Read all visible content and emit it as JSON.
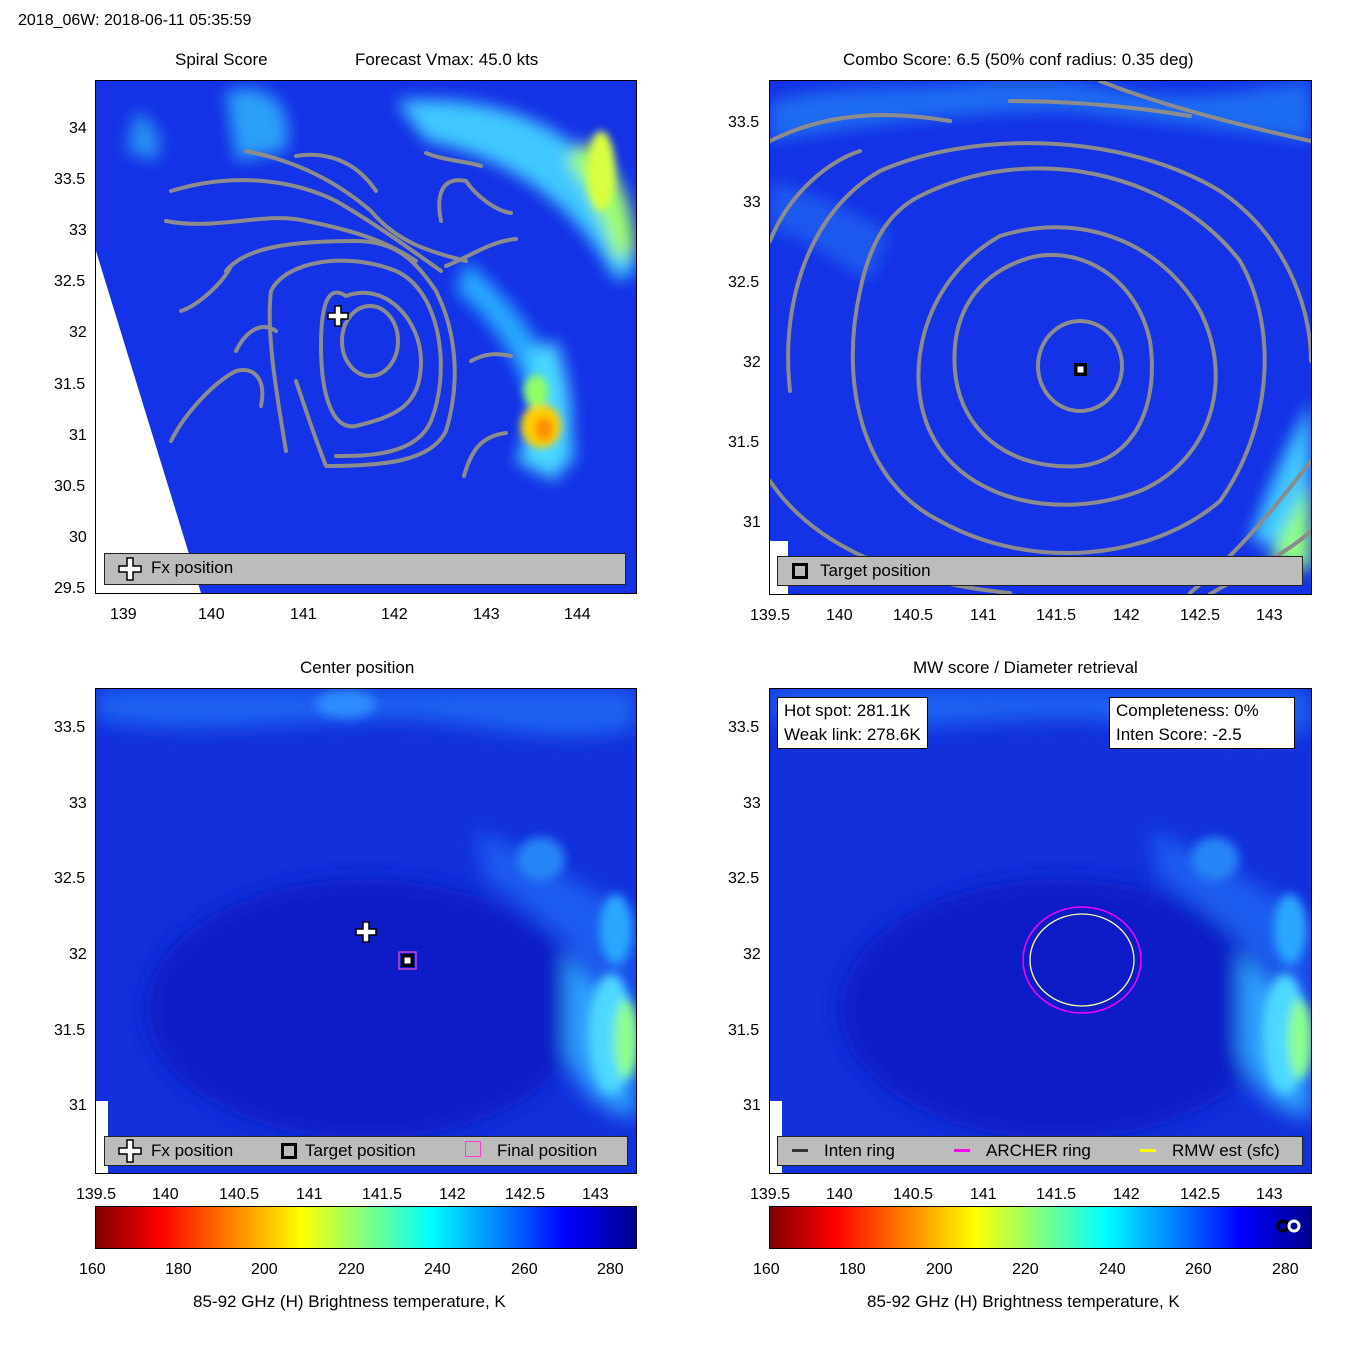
{
  "header": "2018_06W: 2018-06-11 05:35:59",
  "panels": {
    "spiral": {
      "title": "Spiral Score",
      "subtitle": "Forecast Vmax: 45.0 kts",
      "legend": [
        "Fx position"
      ],
      "xticks": [
        "139",
        "140",
        "141",
        "142",
        "143",
        "144"
      ],
      "yticks": [
        "34",
        "33.5",
        "33",
        "32.5",
        "32",
        "31.5",
        "31",
        "30.5",
        "30",
        "29.5"
      ]
    },
    "combo": {
      "title": "Combo Score: 6.5  (50% conf radius: 0.35 deg)",
      "legend": [
        "Target position"
      ],
      "xticks": [
        "139.5",
        "140",
        "140.5",
        "141",
        "141.5",
        "142",
        "142.5",
        "143"
      ],
      "yticks": [
        "33.5",
        "33",
        "32.5",
        "32",
        "31.5",
        "31"
      ]
    },
    "center": {
      "title": "Center position",
      "legend": [
        "Fx position",
        "Target position",
        "Final position"
      ],
      "xticks": [
        "139.5",
        "140",
        "140.5",
        "141",
        "141.5",
        "142",
        "142.5",
        "143"
      ],
      "yticks": [
        "33.5",
        "33",
        "32.5",
        "32",
        "31.5",
        "31"
      ]
    },
    "mw": {
      "title": "MW score / Diameter retrieval",
      "hot_spot": "Hot spot: 281.1K",
      "weak_link": "Weak link: 278.6K",
      "completeness": "Completeness: 0%",
      "inten_score": "Inten Score: -2.5",
      "legend": [
        "Inten ring",
        "ARCHER ring",
        "RMW est (sfc)"
      ],
      "xticks": [
        "139.5",
        "140",
        "140.5",
        "141",
        "141.5",
        "142",
        "142.5",
        "143"
      ],
      "yticks": [
        "33.5",
        "33",
        "32.5",
        "32",
        "31.5",
        "31"
      ]
    }
  },
  "colorbar": {
    "ticks": [
      "160",
      "180",
      "200",
      "220",
      "240",
      "260",
      "280"
    ],
    "label": "85-92 GHz (H) Brightness temperature, K"
  },
  "colors": {
    "background_blue": "#1432e6",
    "contour": "#8c8c8c",
    "archer_ring": "#ff00ff",
    "rmw_ring": "#ffff00",
    "legend_bg": "#bcbcbc"
  },
  "chart_data": [
    {
      "type": "heatmap",
      "title": "Spiral Score",
      "subtitle": "Forecast Vmax: 45.0 kts",
      "xlim": [
        138.8,
        144.6
      ],
      "ylim": [
        29.45,
        34.5
      ],
      "fx_position": [
        141.4,
        32.15
      ],
      "legend": [
        "Fx position"
      ]
    },
    {
      "type": "heatmap",
      "title": "Combo Score: 6.5  (50% conf radius: 0.35 deg)",
      "xlim": [
        139.5,
        143.25
      ],
      "ylim": [
        30.6,
        33.75
      ],
      "target_position": [
        141.67,
        31.97
      ],
      "legend": [
        "Target position"
      ]
    },
    {
      "type": "heatmap",
      "title": "Center position",
      "xlim": [
        139.5,
        143.25
      ],
      "ylim": [
        30.6,
        33.75
      ],
      "fx_position": [
        141.4,
        32.15
      ],
      "target_position": [
        141.67,
        31.96
      ],
      "final_position": [
        141.67,
        31.96
      ],
      "legend": [
        "Fx position",
        "Target position",
        "Final position"
      ]
    },
    {
      "type": "heatmap",
      "title": "MW score / Diameter retrieval",
      "xlim": [
        139.5,
        143.25
      ],
      "ylim": [
        30.6,
        33.75
      ],
      "ring_center": [
        141.67,
        31.96
      ],
      "legend": [
        "Inten ring",
        "ARCHER ring",
        "RMW est (sfc)"
      ]
    }
  ]
}
